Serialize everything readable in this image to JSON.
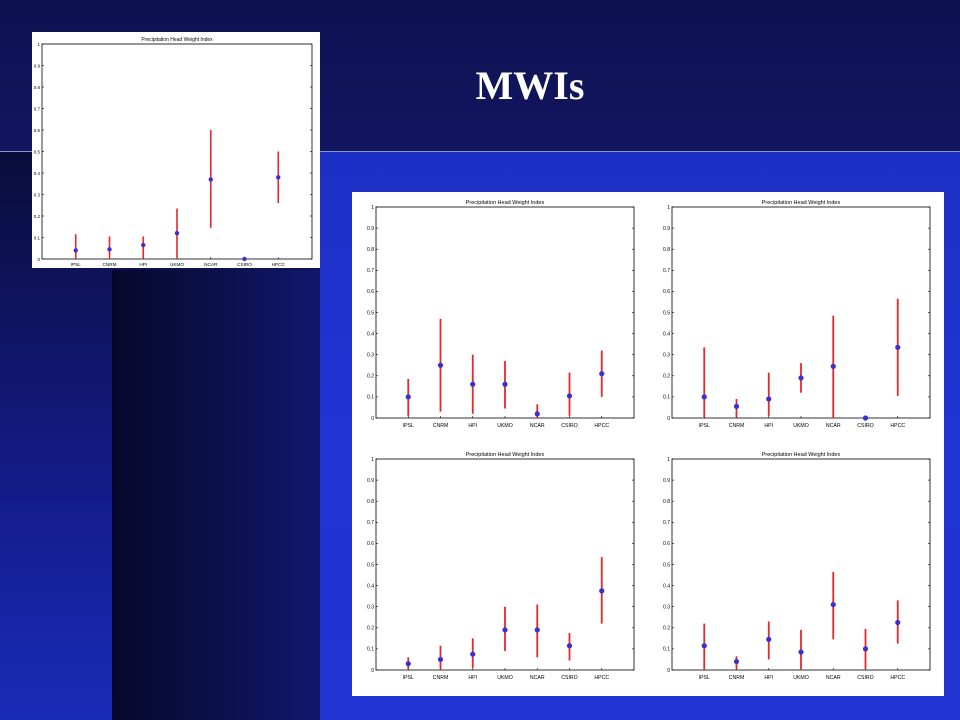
{
  "slide": {
    "title": "MWIs"
  },
  "chart_data": [
    {
      "type": "scatter",
      "title": "Precipitation Head Weight Index",
      "categories": [
        "IPSL",
        "CNRM",
        "HPI",
        "UKMO",
        "NCAR",
        "CSIRO",
        "HPCC"
      ],
      "ylim": [
        0,
        1
      ],
      "yticks": [
        "0",
        "0.1",
        "0.2",
        "0.3",
        "0.4",
        "0.5",
        "0.6",
        "0.7",
        "0.8",
        "0.9",
        "1"
      ],
      "values": [
        0.04,
        0.045,
        0.065,
        0.12,
        0.37,
        0.0,
        0.38
      ],
      "low": [
        0.005,
        0.005,
        0.005,
        0.005,
        0.145,
        0.0,
        0.26
      ],
      "high": [
        0.115,
        0.105,
        0.105,
        0.235,
        0.6,
        0.0,
        0.5
      ]
    },
    {
      "type": "scatter",
      "title": "Precipitation Head Weight Index",
      "categories": [
        "IPSL",
        "CNRM",
        "HPI",
        "UKMO",
        "NCAR",
        "CSIRO",
        "HPCC"
      ],
      "ylim": [
        0,
        1
      ],
      "yticks": [
        "0",
        "0.1",
        "0.2",
        "0.3",
        "0.4",
        "0.5",
        "0.6",
        "0.7",
        "0.8",
        "0.9",
        "1"
      ],
      "values": [
        0.1,
        0.25,
        0.16,
        0.16,
        0.02,
        0.105,
        0.21
      ],
      "low": [
        0.01,
        0.03,
        0.02,
        0.045,
        0.0,
        0.01,
        0.1
      ],
      "high": [
        0.185,
        0.47,
        0.3,
        0.27,
        0.065,
        0.215,
        0.32
      ]
    },
    {
      "type": "scatter",
      "title": "Precipitation Head Weight Index",
      "categories": [
        "IPSL",
        "CNRM",
        "HPI",
        "UKMO",
        "NCAR",
        "CSIRO",
        "HPCC"
      ],
      "ylim": [
        0,
        1
      ],
      "yticks": [
        "0",
        "0.1",
        "0.2",
        "0.3",
        "0.4",
        "0.5",
        "0.6",
        "0.7",
        "0.8",
        "0.9",
        "1"
      ],
      "values": [
        0.1,
        0.055,
        0.09,
        0.19,
        0.245,
        0.0,
        0.335
      ],
      "low": [
        0.005,
        0.005,
        0.01,
        0.12,
        0.0,
        0.0,
        0.105
      ],
      "high": [
        0.335,
        0.09,
        0.215,
        0.26,
        0.485,
        0.0,
        0.565
      ]
    },
    {
      "type": "scatter",
      "title": "Precipitation Head Weight Index",
      "categories": [
        "IPSL",
        "CNRM",
        "HPI",
        "UKMO",
        "NCAR",
        "CSIRO",
        "HPCC"
      ],
      "ylim": [
        0,
        1
      ],
      "yticks": [
        "0",
        "0.1",
        "0.2",
        "0.3",
        "0.4",
        "0.5",
        "0.6",
        "0.7",
        "0.8",
        "0.9",
        "1"
      ],
      "values": [
        0.03,
        0.05,
        0.075,
        0.19,
        0.19,
        0.115,
        0.375
      ],
      "low": [
        0.005,
        0.005,
        0.01,
        0.09,
        0.06,
        0.045,
        0.22
      ],
      "high": [
        0.06,
        0.115,
        0.15,
        0.3,
        0.31,
        0.175,
        0.535
      ]
    },
    {
      "type": "scatter",
      "title": "Precipitation Head Weight Index",
      "categories": [
        "IPSL",
        "CNRM",
        "HPI",
        "UKMO",
        "NCAR",
        "CSIRO",
        "HPCC"
      ],
      "ylim": [
        0,
        1
      ],
      "yticks": [
        "0",
        "0.1",
        "0.2",
        "0.3",
        "0.4",
        "0.5",
        "0.6",
        "0.7",
        "0.8",
        "0.9",
        "1"
      ],
      "values": [
        0.115,
        0.04,
        0.145,
        0.085,
        0.31,
        0.1,
        0.225
      ],
      "low": [
        0.0,
        0.005,
        0.05,
        0.005,
        0.145,
        0.005,
        0.125
      ],
      "high": [
        0.22,
        0.065,
        0.23,
        0.19,
        0.465,
        0.195,
        0.33
      ]
    }
  ],
  "colors": {
    "error_bar": "#e8262a",
    "marker": "#3b2fd0",
    "frame": "#000000"
  }
}
